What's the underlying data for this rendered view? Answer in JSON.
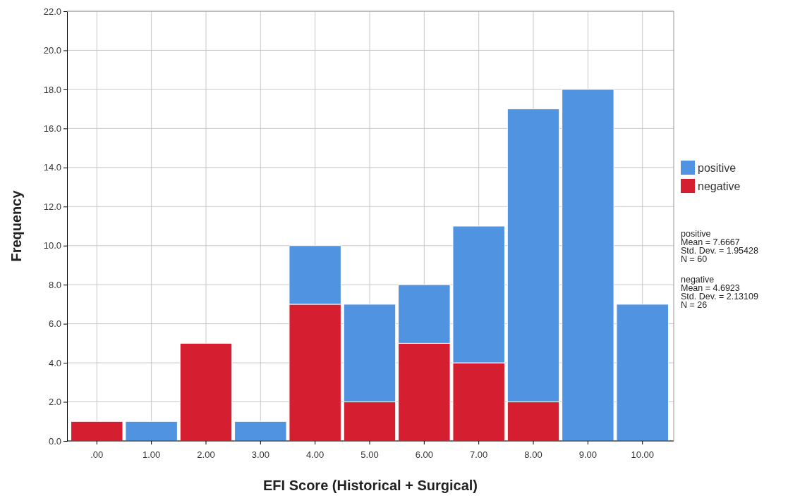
{
  "chart_data": {
    "type": "bar",
    "stacked": true,
    "xlabel": "EFI Score (Historical + Surgical)",
    "ylabel": "Frequency",
    "categories": [
      ".00",
      "1.00",
      "2.00",
      "3.00",
      "4.00",
      "5.00",
      "6.00",
      "7.00",
      "8.00",
      "9.00",
      "10.00"
    ],
    "series": [
      {
        "name": "negative",
        "color": "#d51f30",
        "values": [
          1,
          0,
          5,
          0,
          7,
          2,
          5,
          4,
          2,
          0,
          0
        ]
      },
      {
        "name": "positive",
        "color": "#5093e0",
        "values": [
          0,
          1,
          0,
          1,
          3,
          5,
          3,
          7,
          15,
          18,
          7
        ]
      }
    ],
    "ylim": [
      0,
      22
    ],
    "yticks": [
      {
        "value": 0,
        "label": "0.0"
      },
      {
        "value": 2,
        "label": "2.0"
      },
      {
        "value": 4,
        "label": "4.0"
      },
      {
        "value": 6,
        "label": "6.0"
      },
      {
        "value": 8,
        "label": "8.0"
      },
      {
        "value": 10,
        "label": "10.0"
      },
      {
        "value": 12,
        "label": "12.0"
      },
      {
        "value": 14,
        "label": "14.0"
      },
      {
        "value": 16,
        "label": "16.0"
      },
      {
        "value": 18,
        "label": "18.0"
      },
      {
        "value": 20,
        "label": "20.0"
      },
      {
        "value": 22,
        "label": "22.0"
      }
    ],
    "grid": true,
    "legend": "right",
    "annotations": [
      "positive\nMean = 7.6667\nStd. Dev. = 1.95428\nN = 60",
      "negative\nMean = 4.6923\nStd. Dev. = 2.13109\nN = 26"
    ]
  }
}
